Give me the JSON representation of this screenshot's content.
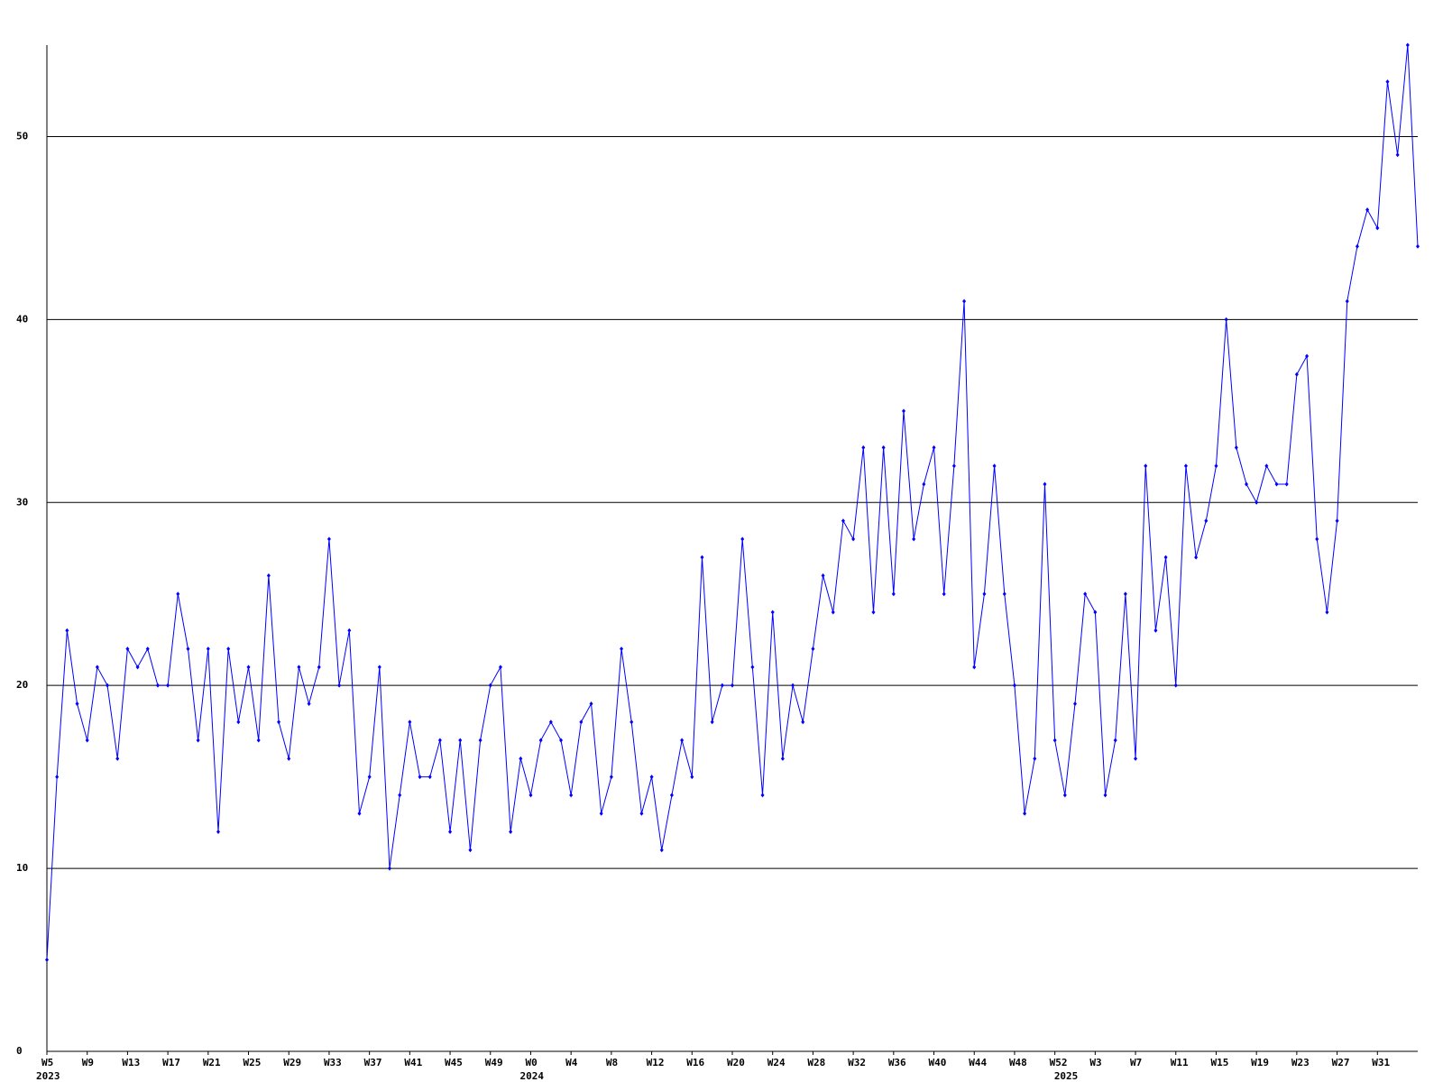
{
  "chart_data": {
    "type": "line",
    "categories": [
      "W5",
      null,
      null,
      null,
      "W9",
      null,
      null,
      null,
      "W13",
      null,
      null,
      null,
      "W17",
      null,
      null,
      null,
      "W21",
      null,
      null,
      null,
      "W25",
      null,
      null,
      null,
      "W29",
      null,
      null,
      null,
      "W33",
      null,
      null,
      null,
      "W37",
      null,
      null,
      null,
      "W41",
      null,
      null,
      null,
      "W45",
      null,
      null,
      null,
      "W49",
      null,
      null,
      null,
      "W0",
      null,
      null,
      null,
      "W4",
      null,
      null,
      null,
      "W8",
      null,
      null,
      null,
      "W12",
      null,
      null,
      null,
      "W16",
      null,
      null,
      null,
      "W20",
      null,
      null,
      null,
      "W24",
      null,
      null,
      null,
      "W28",
      null,
      null,
      null,
      "W32",
      null,
      null,
      null,
      "W36",
      null,
      null,
      null,
      "W40",
      null,
      null,
      null,
      "W44",
      null,
      null,
      null,
      "W48",
      null,
      null,
      null,
      "W52",
      null,
      null,
      null,
      "W3",
      null,
      null,
      null,
      "W7",
      null,
      null,
      null,
      "W11",
      null,
      null,
      null,
      "W15",
      null,
      null,
      null,
      "W19",
      null,
      null,
      null,
      "W23",
      null,
      null,
      null,
      "W27",
      null,
      null,
      null,
      "W31",
      null,
      null,
      null,
      null
    ],
    "years": [
      "2023",
      null,
      null,
      null,
      null,
      null,
      null,
      null,
      null,
      null,
      null,
      null,
      null,
      null,
      null,
      null,
      null,
      null,
      null,
      null,
      null,
      null,
      null,
      null,
      null,
      null,
      null,
      null,
      null,
      null,
      null,
      null,
      null,
      null,
      null,
      null,
      null,
      null,
      null,
      null,
      null,
      null,
      null,
      null,
      null,
      null,
      null,
      null,
      "2024",
      null,
      null,
      null,
      null,
      null,
      null,
      null,
      null,
      null,
      null,
      null,
      null,
      null,
      null,
      null,
      null,
      null,
      null,
      null,
      null,
      null,
      null,
      null,
      null,
      null,
      null,
      null,
      null,
      null,
      null,
      null,
      null,
      null,
      null,
      null,
      null,
      null,
      null,
      null,
      null,
      null,
      null,
      null,
      null,
      null,
      null,
      null,
      null,
      null,
      null,
      null,
      null,
      "2025",
      null,
      null,
      null,
      null,
      null,
      null,
      null,
      null,
      null,
      null,
      null,
      null,
      null,
      null,
      null,
      null,
      null,
      null,
      null,
      null,
      null,
      null,
      null,
      null,
      null,
      null,
      null,
      null,
      null,
      null,
      null,
      null,
      null,
      null,
      null
    ],
    "series": [
      {
        "color": "#0000ff",
        "values": [
          5,
          15,
          23,
          19,
          17,
          21,
          20,
          16,
          22,
          21,
          22,
          20,
          20,
          25,
          22,
          17,
          22,
          12,
          22,
          18,
          21,
          17,
          26,
          18,
          16,
          21,
          19,
          21,
          28,
          20,
          23,
          13,
          15,
          21,
          10,
          14,
          18,
          15,
          15,
          17,
          12,
          17,
          11,
          17,
          20,
          21,
          12,
          16,
          14,
          17,
          18,
          17,
          14,
          18,
          19,
          13,
          15,
          22,
          18,
          13,
          15,
          11,
          14,
          17,
          15,
          27,
          18,
          20,
          20,
          28,
          21,
          14,
          24,
          16,
          20,
          18,
          22,
          26,
          24,
          29,
          28,
          33,
          24,
          33,
          25,
          35,
          28,
          31,
          33,
          25,
          32,
          41,
          21,
          25,
          32,
          25,
          20,
          13,
          16,
          31,
          17,
          14,
          19,
          25,
          24,
          14,
          17,
          25,
          16,
          32,
          23,
          27,
          20,
          32,
          27,
          29,
          32,
          40,
          33,
          31,
          30,
          32,
          31,
          31,
          37,
          38,
          28,
          24,
          29,
          41,
          44,
          46,
          45,
          53,
          49,
          55,
          44
        ]
      }
    ],
    "ylim": [
      0,
      55
    ],
    "yticks": [
      0,
      10,
      20,
      30,
      40,
      50
    ],
    "grid": true
  }
}
